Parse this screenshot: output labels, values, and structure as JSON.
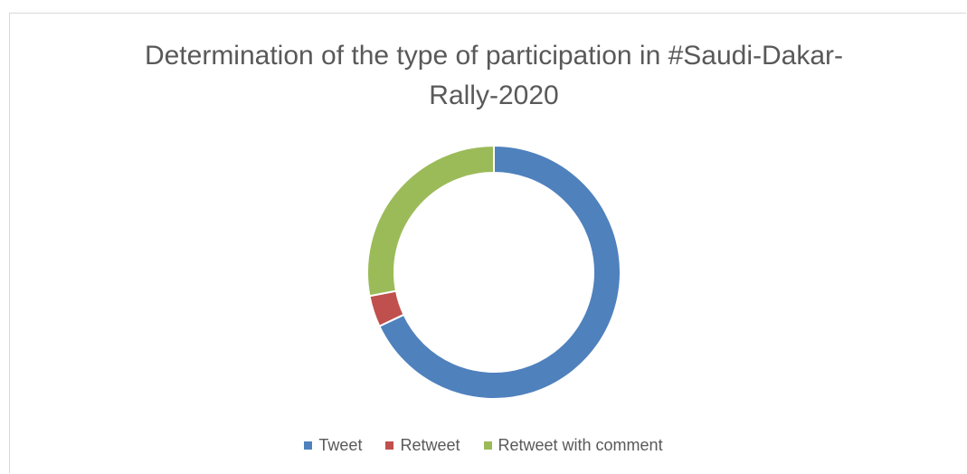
{
  "chart_data": {
    "type": "donut",
    "title": "Determination of the type of participation in #Saudi-Dakar-Rally-2020",
    "categories": [
      "Tweet",
      "Retweet",
      "Retweet with comment"
    ],
    "values": [
      68,
      4,
      28
    ],
    "colors": [
      "#4f81bd",
      "#c0504d",
      "#9bbb59"
    ],
    "legend": "bottom"
  }
}
